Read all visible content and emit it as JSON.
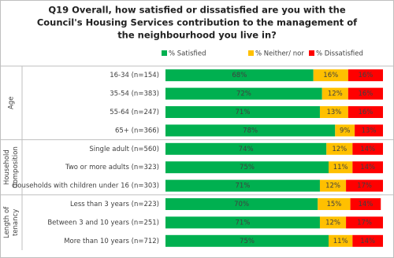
{
  "chart_data": {
    "type": "stacked-bar",
    "title": [
      "Q19 Overall, how satisfied or dissatisfied are you with the",
      "Council's Housing Services contribution to the management of",
      "the neighbourhood you live in?"
    ],
    "legend": [
      {
        "name": "% Satisfied",
        "color": "#00b050"
      },
      {
        "name": "% Neither/ nor",
        "color": "#ffc000"
      },
      {
        "name": "% Dissatisfied",
        "color": "#ff0000"
      }
    ],
    "groups": [
      {
        "label": [
          "Age"
        ],
        "categories": [
          "16-34 (n=154)",
          "35-54 (n=383)",
          "55-64 (n=247)",
          "65+ (n=366)"
        ],
        "series": [
          {
            "values": [
              68,
              72,
              71,
              78
            ],
            "value_labels": [
              "68%",
              "72%",
              "71%",
              "78%"
            ]
          },
          {
            "values": [
              16,
              12,
              13,
              9
            ],
            "value_labels": [
              "16%",
              "12%",
              "13%",
              "9%"
            ]
          },
          {
            "values": [
              16,
              16,
              16,
              13
            ],
            "value_labels": [
              "16%",
              "16%",
              "16%",
              "13%"
            ]
          }
        ]
      },
      {
        "label": [
          "Household",
          "Composition"
        ],
        "categories": [
          "Single adult (n=560)",
          "Two or more adults (n=323)",
          "Households with children under 16 (n=303)"
        ],
        "series": [
          {
            "values": [
              74,
              75,
              71
            ],
            "value_labels": [
              "74%",
              "75%",
              "71%"
            ]
          },
          {
            "values": [
              12,
              11,
              12
            ],
            "value_labels": [
              "12%",
              "11%",
              "12%"
            ]
          },
          {
            "values": [
              14,
              14,
              17
            ],
            "value_labels": [
              "14%",
              "14%",
              "17%"
            ]
          }
        ]
      },
      {
        "label": [
          "Length of",
          "tenancy"
        ],
        "categories": [
          "Less than 3 years (n=223)",
          "Between 3 and 10 years (n=251)",
          "More than 10 years (n=712)"
        ],
        "series": [
          {
            "values": [
              70,
              71,
              75
            ],
            "value_labels": [
              "70%",
              "71%",
              "75%"
            ]
          },
          {
            "values": [
              15,
              12,
              11
            ],
            "value_labels": [
              "15%",
              "12%",
              "11%"
            ]
          },
          {
            "values": [
              14,
              17,
              14
            ],
            "value_labels": [
              "14%",
              "17%",
              "14%"
            ]
          }
        ]
      }
    ]
  }
}
